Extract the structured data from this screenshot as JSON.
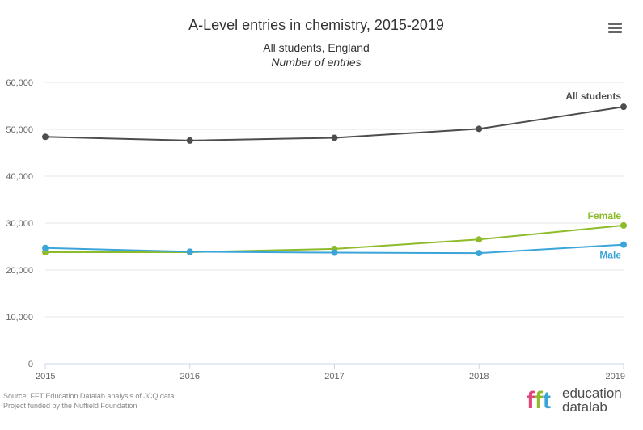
{
  "chart_data": {
    "type": "line",
    "title": "A-Level entries in chemistry, 2015-2019",
    "subtitle": "All students, England",
    "subtitle2": "Number of entries",
    "x": [
      "2015",
      "2016",
      "2017",
      "2018",
      "2019"
    ],
    "ylim": [
      0,
      60000
    ],
    "y_ticks": [
      "0",
      "10,000",
      "20,000",
      "30,000",
      "40,000",
      "50,000",
      "60,000"
    ],
    "y_tick_values": [
      0,
      10000,
      20000,
      30000,
      40000,
      50000,
      60000
    ],
    "grid": true,
    "series": [
      {
        "name": "All students",
        "color": "#4d4d4d",
        "values": [
          48400,
          47600,
          48200,
          50100,
          54800
        ]
      },
      {
        "name": "Female",
        "color": "#8dbb2a",
        "values": [
          23800,
          23800,
          24500,
          26500,
          29500
        ]
      },
      {
        "name": "Male",
        "color": "#3ba5d9",
        "values": [
          24700,
          23900,
          23700,
          23600,
          25400
        ]
      }
    ]
  },
  "source": {
    "line1": "Source: FFT Education Datalab analysis of JCQ data",
    "line2": "Project funded by the Nuffield Foundation"
  },
  "logo": {
    "mark": "fft",
    "line1": "education",
    "line2": "datalab"
  },
  "menu_icon": "hamburger-menu-icon"
}
